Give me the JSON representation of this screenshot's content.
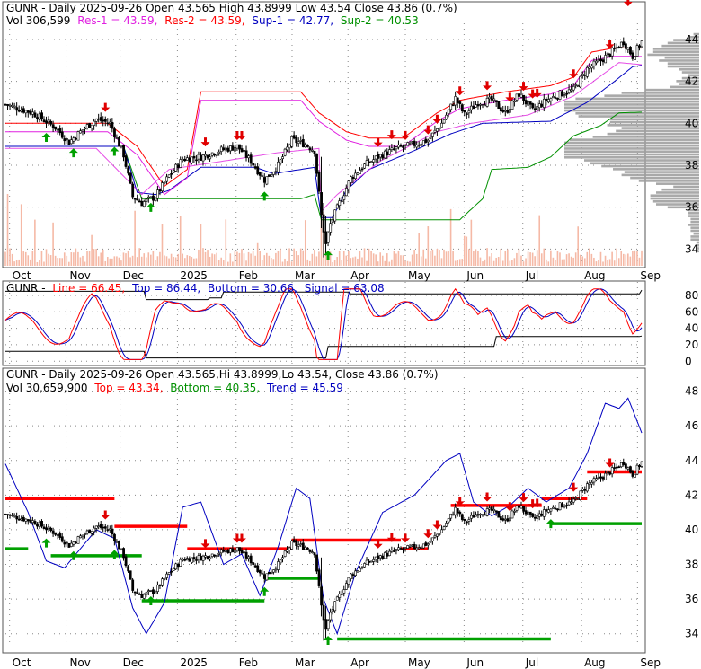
{
  "colors": {
    "up": "#000000",
    "down": "#000000",
    "res": "#e020e0",
    "sup": "#009000",
    "blue": "#0000c0",
    "red": "#ff0000",
    "green": "#00a000",
    "darkred": "#c00000",
    "volume": "#f5b9a6",
    "profile": "#a0a0a0",
    "grid": "#888888"
  },
  "panel1": {
    "title": "GUNR - Daily 2025-09-26 Open 43.565  High 43.8999  Low 43.54  Close 43.86 (0.7%)",
    "title_ticker": "GUNR - Daily 2025-09-26 Open 43.565  High 43.8999  Low 43.54  Close 43.86 (0.7%)",
    "vol_label": "Vol 306,599",
    "res1": "Res-1 = 43.59,",
    "res2": "Res-2 = 43.59,",
    "sup1": "Sup-1 = 42.77,",
    "sup2": "Sup-2 = 40.53"
  },
  "panel2": {
    "ticker": "GUNR -",
    "line": "Line = 66.45,",
    "top": "Top = 86.44,",
    "bottom": "Bottom = 30.66,",
    "signal": "Signal = 63.08"
  },
  "panel3": {
    "title": "GUNR - Daily 2025-09-26 Open 43.565,Hi 43.8999,Lo 43.54,  Close 43.86 (0.7%)",
    "vol_label": "Vol 30,659,900",
    "top": "Top = 43.34,",
    "bottom": "Bottom = 40.35,",
    "trend": "Trend = 45.59"
  },
  "chart_data": [
    {
      "type": "line",
      "title": "GUNR - Daily 2025-09-26 Open 43.565  High 43.8999  Low 43.54  Close 43.86 (0.7%)",
      "x_ticks": [
        "Oct",
        "Nov",
        "Dec",
        "2025",
        "Feb",
        "Mar",
        "Apr",
        "May",
        "Jun",
        "Jul",
        "Aug",
        "Sep"
      ],
      "y_ticks": [
        34,
        36,
        38,
        40,
        42,
        44
      ],
      "ylim": [
        33.2,
        44.6
      ],
      "close_keypoints": [
        {
          "t": 0,
          "v": 40.9
        },
        {
          "t": 12,
          "v": 40.5
        },
        {
          "t": 22,
          "v": 39.8
        },
        {
          "t": 28,
          "v": 39.1
        },
        {
          "t": 34,
          "v": 39.7
        },
        {
          "t": 40,
          "v": 40.2
        },
        {
          "t": 46,
          "v": 40.0
        },
        {
          "t": 52,
          "v": 38.5
        },
        {
          "t": 56,
          "v": 36.5
        },
        {
          "t": 60,
          "v": 36.2
        },
        {
          "t": 66,
          "v": 36.5
        },
        {
          "t": 72,
          "v": 37.5
        },
        {
          "t": 78,
          "v": 38.3
        },
        {
          "t": 86,
          "v": 38.4
        },
        {
          "t": 94,
          "v": 38.7
        },
        {
          "t": 102,
          "v": 38.9
        },
        {
          "t": 108,
          "v": 38.2
        },
        {
          "t": 114,
          "v": 37.3
        },
        {
          "t": 120,
          "v": 38.0
        },
        {
          "t": 126,
          "v": 39.2
        },
        {
          "t": 132,
          "v": 39.0
        },
        {
          "t": 136,
          "v": 38.7
        },
        {
          "t": 139,
          "v": 35.6
        },
        {
          "t": 141,
          "v": 34.2
        },
        {
          "t": 143,
          "v": 35.2
        },
        {
          "t": 147,
          "v": 36.2
        },
        {
          "t": 152,
          "v": 37.4
        },
        {
          "t": 158,
          "v": 38.0
        },
        {
          "t": 164,
          "v": 38.4
        },
        {
          "t": 172,
          "v": 38.8
        },
        {
          "t": 180,
          "v": 39.0
        },
        {
          "t": 186,
          "v": 39.2
        },
        {
          "t": 192,
          "v": 40.0
        },
        {
          "t": 198,
          "v": 41.2
        },
        {
          "t": 202,
          "v": 40.4
        },
        {
          "t": 208,
          "v": 41.0
        },
        {
          "t": 214,
          "v": 41.1
        },
        {
          "t": 220,
          "v": 40.5
        },
        {
          "t": 226,
          "v": 41.4
        },
        {
          "t": 232,
          "v": 40.6
        },
        {
          "t": 238,
          "v": 41.1
        },
        {
          "t": 244,
          "v": 41.4
        },
        {
          "t": 250,
          "v": 41.6
        },
        {
          "t": 256,
          "v": 42.6
        },
        {
          "t": 262,
          "v": 43.0
        },
        {
          "t": 268,
          "v": 43.5
        },
        {
          "t": 272,
          "v": 43.9
        },
        {
          "t": 276,
          "v": 43.2
        },
        {
          "t": 280,
          "v": 43.9
        }
      ],
      "sup1": [
        {
          "t": 0,
          "v": 38.9
        },
        {
          "t": 52,
          "v": 38.9
        },
        {
          "t": 58,
          "v": 36.7
        },
        {
          "t": 66,
          "v": 36.6
        },
        {
          "t": 72,
          "v": 36.8
        },
        {
          "t": 86,
          "v": 37.9
        },
        {
          "t": 110,
          "v": 37.9
        },
        {
          "t": 118,
          "v": 37.6
        },
        {
          "t": 136,
          "v": 37.9
        },
        {
          "t": 139,
          "v": 35.5
        },
        {
          "t": 144,
          "v": 35.5
        },
        {
          "t": 150,
          "v": 36.8
        },
        {
          "t": 160,
          "v": 37.8
        },
        {
          "t": 180,
          "v": 38.7
        },
        {
          "t": 196,
          "v": 39.5
        },
        {
          "t": 210,
          "v": 40.0
        },
        {
          "t": 240,
          "v": 40.1
        },
        {
          "t": 256,
          "v": 41.0
        },
        {
          "t": 268,
          "v": 42.0
        },
        {
          "t": 276,
          "v": 42.7
        },
        {
          "t": 280,
          "v": 42.77
        }
      ],
      "sup2": [
        {
          "t": 0,
          "v": 38.9
        },
        {
          "t": 52,
          "v": 38.9
        },
        {
          "t": 60,
          "v": 36.4
        },
        {
          "t": 70,
          "v": 36.4
        },
        {
          "t": 130,
          "v": 36.4
        },
        {
          "t": 136,
          "v": 36.6
        },
        {
          "t": 139,
          "v": 35.4
        },
        {
          "t": 200,
          "v": 35.4
        },
        {
          "t": 210,
          "v": 36.4
        },
        {
          "t": 214,
          "v": 37.8
        },
        {
          "t": 230,
          "v": 37.9
        },
        {
          "t": 240,
          "v": 38.4
        },
        {
          "t": 250,
          "v": 39.4
        },
        {
          "t": 262,
          "v": 39.9
        },
        {
          "t": 270,
          "v": 40.5
        },
        {
          "t": 280,
          "v": 40.53
        }
      ],
      "res1": [
        {
          "t": 0,
          "v": 40.0
        },
        {
          "t": 45,
          "v": 40.0
        },
        {
          "t": 58,
          "v": 38.9
        },
        {
          "t": 70,
          "v": 37.0
        },
        {
          "t": 80,
          "v": 37.8
        },
        {
          "t": 86,
          "v": 41.5
        },
        {
          "t": 130,
          "v": 41.5
        },
        {
          "t": 138,
          "v": 40.5
        },
        {
          "t": 150,
          "v": 39.6
        },
        {
          "t": 160,
          "v": 39.3
        },
        {
          "t": 175,
          "v": 39.3
        },
        {
          "t": 190,
          "v": 40.5
        },
        {
          "t": 200,
          "v": 41.1
        },
        {
          "t": 220,
          "v": 41.5
        },
        {
          "t": 240,
          "v": 41.8
        },
        {
          "t": 250,
          "v": 42.2
        },
        {
          "t": 258,
          "v": 43.4
        },
        {
          "t": 268,
          "v": 43.6
        },
        {
          "t": 280,
          "v": 43.59
        }
      ],
      "sup_trail": [
        {
          "t": 40,
          "v": 38.8
        },
        {
          "t": 60,
          "v": 36.6
        },
        {
          "t": 72,
          "v": 37.8
        },
        {
          "t": 120,
          "v": 38.6
        },
        {
          "t": 138,
          "v": 38.8
        },
        {
          "t": 139,
          "v": 35.8
        },
        {
          "t": 146,
          "v": 36.6
        },
        {
          "t": 165,
          "v": 38.2
        },
        {
          "t": 190,
          "v": 39.6
        },
        {
          "t": 205,
          "v": 40.0
        },
        {
          "t": 230,
          "v": 40.4
        },
        {
          "t": 250,
          "v": 41.3
        },
        {
          "t": 270,
          "v": 42.9
        },
        {
          "t": 280,
          "v": 42.8
        }
      ],
      "sell_arrows_t": [
        44,
        88,
        102,
        104,
        164,
        170,
        176,
        186,
        190,
        200,
        212,
        222,
        228,
        232,
        234,
        250,
        266
      ],
      "buy_arrows_t": [
        18,
        30,
        48,
        64,
        114,
        142
      ]
    },
    {
      "type": "line",
      "title": "GUNR - Line = 66.45, Top = 86.44, Bottom = 30.66, Signal = 63.08",
      "y_ticks": [
        0,
        20,
        40,
        60,
        80
      ],
      "ylim": [
        -3,
        92
      ],
      "top_band": 86.44,
      "bottom_band": 30.66,
      "last_line": 66.45,
      "last_signal": 63.08
    },
    {
      "type": "line",
      "title": "GUNR - Daily 2025-09-26 Open 43.565,Hi 43.8999,Lo 43.54,  Close 43.86 (0.7%)",
      "x_ticks": [
        "Oct",
        "Nov",
        "Dec",
        "2025",
        "Feb",
        "Mar",
        "Apr",
        "May",
        "Jun",
        "Jul",
        "Aug",
        "Sep"
      ],
      "y_ticks": [
        34,
        36,
        38,
        40,
        42,
        44,
        46,
        48
      ],
      "ylim": [
        33.0,
        48.6
      ],
      "top": 43.34,
      "bottom": 40.35,
      "trend": 45.59,
      "trend_keypoints": [
        {
          "t": 0,
          "v": 43.8
        },
        {
          "t": 10,
          "v": 41.0
        },
        {
          "t": 18,
          "v": 38.2
        },
        {
          "t": 26,
          "v": 37.8
        },
        {
          "t": 40,
          "v": 40.0
        },
        {
          "t": 48,
          "v": 39.5
        },
        {
          "t": 56,
          "v": 35.5
        },
        {
          "t": 62,
          "v": 34.0
        },
        {
          "t": 70,
          "v": 35.8
        },
        {
          "t": 78,
          "v": 41.3
        },
        {
          "t": 86,
          "v": 41.6
        },
        {
          "t": 96,
          "v": 38.0
        },
        {
          "t": 104,
          "v": 38.6
        },
        {
          "t": 112,
          "v": 36.2
        },
        {
          "t": 120,
          "v": 39.0
        },
        {
          "t": 128,
          "v": 42.4
        },
        {
          "t": 134,
          "v": 41.8
        },
        {
          "t": 140,
          "v": 36.0
        },
        {
          "t": 146,
          "v": 34.0
        },
        {
          "t": 154,
          "v": 37.5
        },
        {
          "t": 166,
          "v": 41.0
        },
        {
          "t": 180,
          "v": 42.0
        },
        {
          "t": 194,
          "v": 44.0
        },
        {
          "t": 200,
          "v": 44.4
        },
        {
          "t": 206,
          "v": 41.6
        },
        {
          "t": 214,
          "v": 40.8
        },
        {
          "t": 222,
          "v": 41.4
        },
        {
          "t": 230,
          "v": 42.4
        },
        {
          "t": 238,
          "v": 41.6
        },
        {
          "t": 248,
          "v": 42.4
        },
        {
          "t": 256,
          "v": 44.4
        },
        {
          "t": 264,
          "v": 47.3
        },
        {
          "t": 270,
          "v": 47.0
        },
        {
          "t": 274,
          "v": 47.6
        },
        {
          "t": 280,
          "v": 45.59
        }
      ],
      "red_segments": [
        [
          0,
          48,
          41.8
        ],
        [
          48,
          80,
          40.2
        ],
        [
          80,
          126,
          38.9
        ],
        [
          126,
          174,
          39.4
        ],
        [
          174,
          186,
          38.9
        ],
        [
          196,
          236,
          41.4
        ],
        [
          236,
          256,
          41.8
        ],
        [
          256,
          280,
          43.34
        ]
      ],
      "green_segments": [
        [
          0,
          10,
          38.9
        ],
        [
          20,
          60,
          38.5
        ],
        [
          60,
          114,
          35.9
        ],
        [
          114,
          138,
          37.2
        ],
        [
          146,
          240,
          33.7
        ],
        [
          240,
          280,
          40.35
        ]
      ]
    }
  ]
}
